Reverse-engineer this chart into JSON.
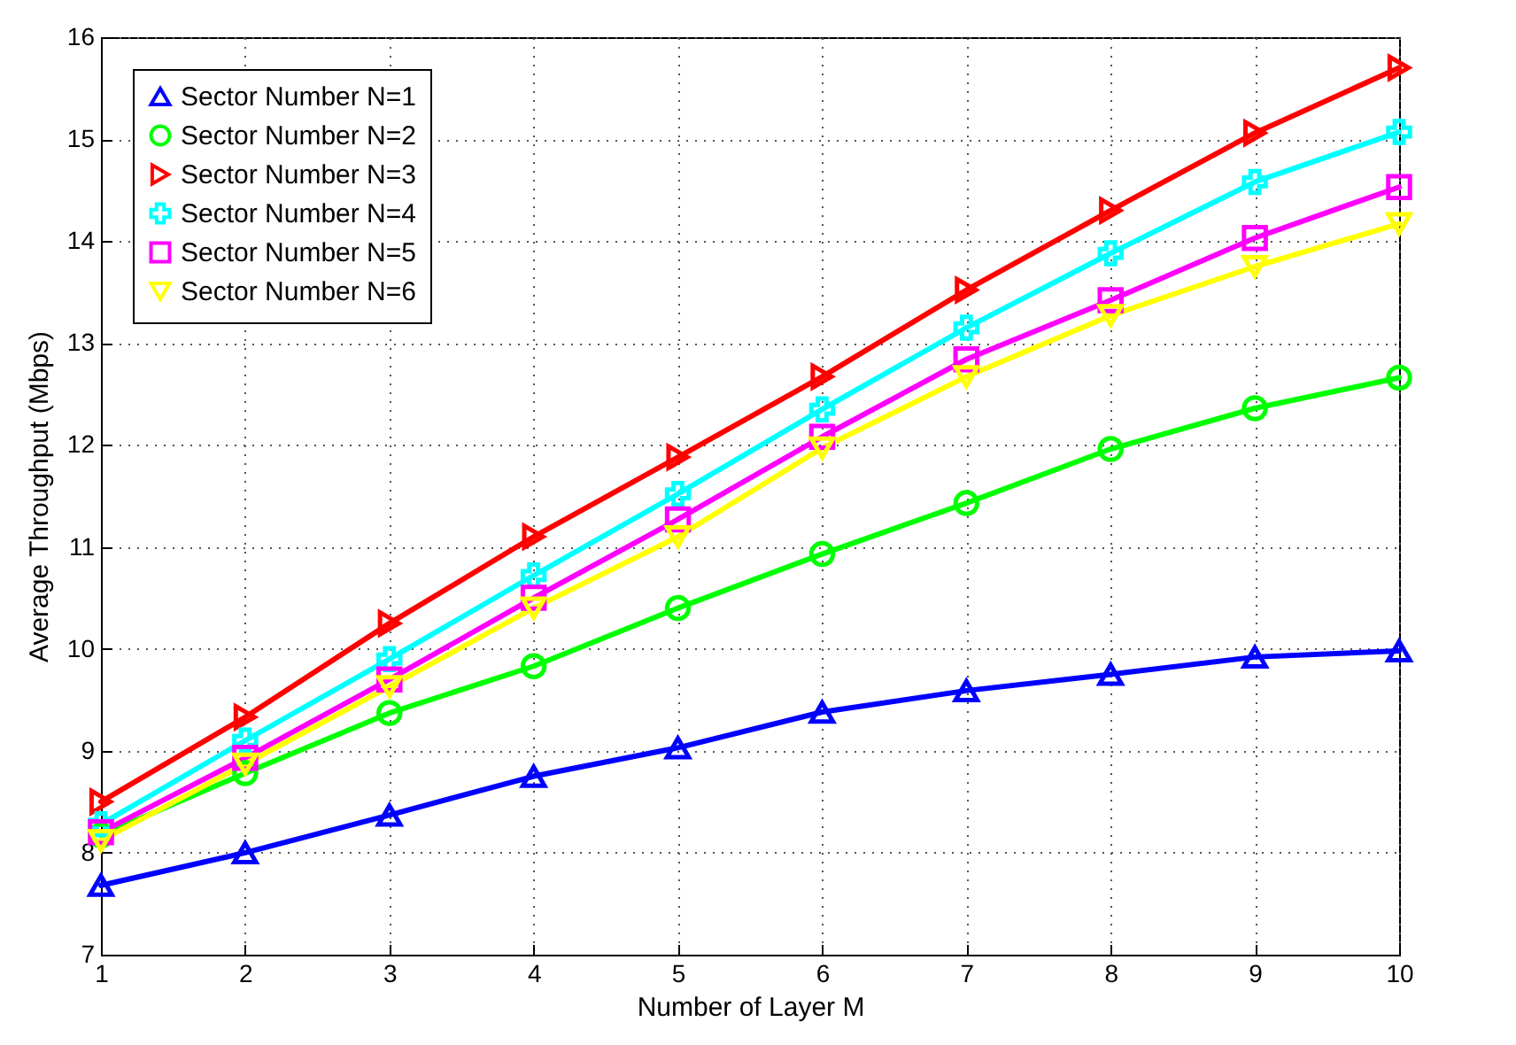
{
  "chart_data": {
    "type": "line",
    "xlabel": "Number of Layer M",
    "ylabel": "Average Throughput (Mbps)",
    "x": [
      1,
      2,
      3,
      4,
      5,
      6,
      7,
      8,
      9,
      10
    ],
    "xlim": [
      1,
      10
    ],
    "xticks": [
      1,
      2,
      3,
      4,
      5,
      6,
      7,
      8,
      9,
      10
    ],
    "ylim": [
      7,
      16
    ],
    "yticks": [
      7,
      8,
      9,
      10,
      11,
      12,
      13,
      14,
      15,
      16
    ],
    "grid": true,
    "legend": "top left",
    "line_style": "solid",
    "series": [
      {
        "name": "Sector Number N=1",
        "color": "#0000ff",
        "marker": "triangle-up",
        "values": [
          7.68,
          8.0,
          8.37,
          8.75,
          9.03,
          9.38,
          9.59,
          9.75,
          9.92,
          9.98
        ]
      },
      {
        "name": "Sector Number N=2",
        "color": "#00ff00",
        "marker": "circle",
        "values": [
          8.17,
          8.78,
          9.37,
          9.83,
          10.4,
          10.93,
          11.43,
          11.96,
          12.36,
          12.66
        ]
      },
      {
        "name": "Sector Number N=3",
        "color": "#ff0000",
        "marker": "triangle-right",
        "values": [
          8.5,
          9.33,
          10.25,
          11.1,
          11.88,
          12.67,
          13.52,
          14.3,
          15.06,
          15.7
        ]
      },
      {
        "name": "Sector Number N=4",
        "color": "#00ffff",
        "marker": "cross",
        "values": [
          8.28,
          9.1,
          9.9,
          10.72,
          11.52,
          12.35,
          13.15,
          13.88,
          14.58,
          15.07
        ]
      },
      {
        "name": "Sector Number N=5",
        "color": "#ff00ff",
        "marker": "square",
        "values": [
          8.2,
          8.93,
          9.7,
          10.5,
          11.27,
          12.08,
          12.84,
          13.42,
          14.03,
          14.53
        ]
      },
      {
        "name": "Sector Number N=6",
        "color": "#ffff00",
        "marker": "triangle-down",
        "values": [
          8.12,
          8.87,
          9.63,
          10.4,
          11.1,
          11.97,
          12.67,
          13.27,
          13.75,
          14.17
        ]
      }
    ]
  }
}
